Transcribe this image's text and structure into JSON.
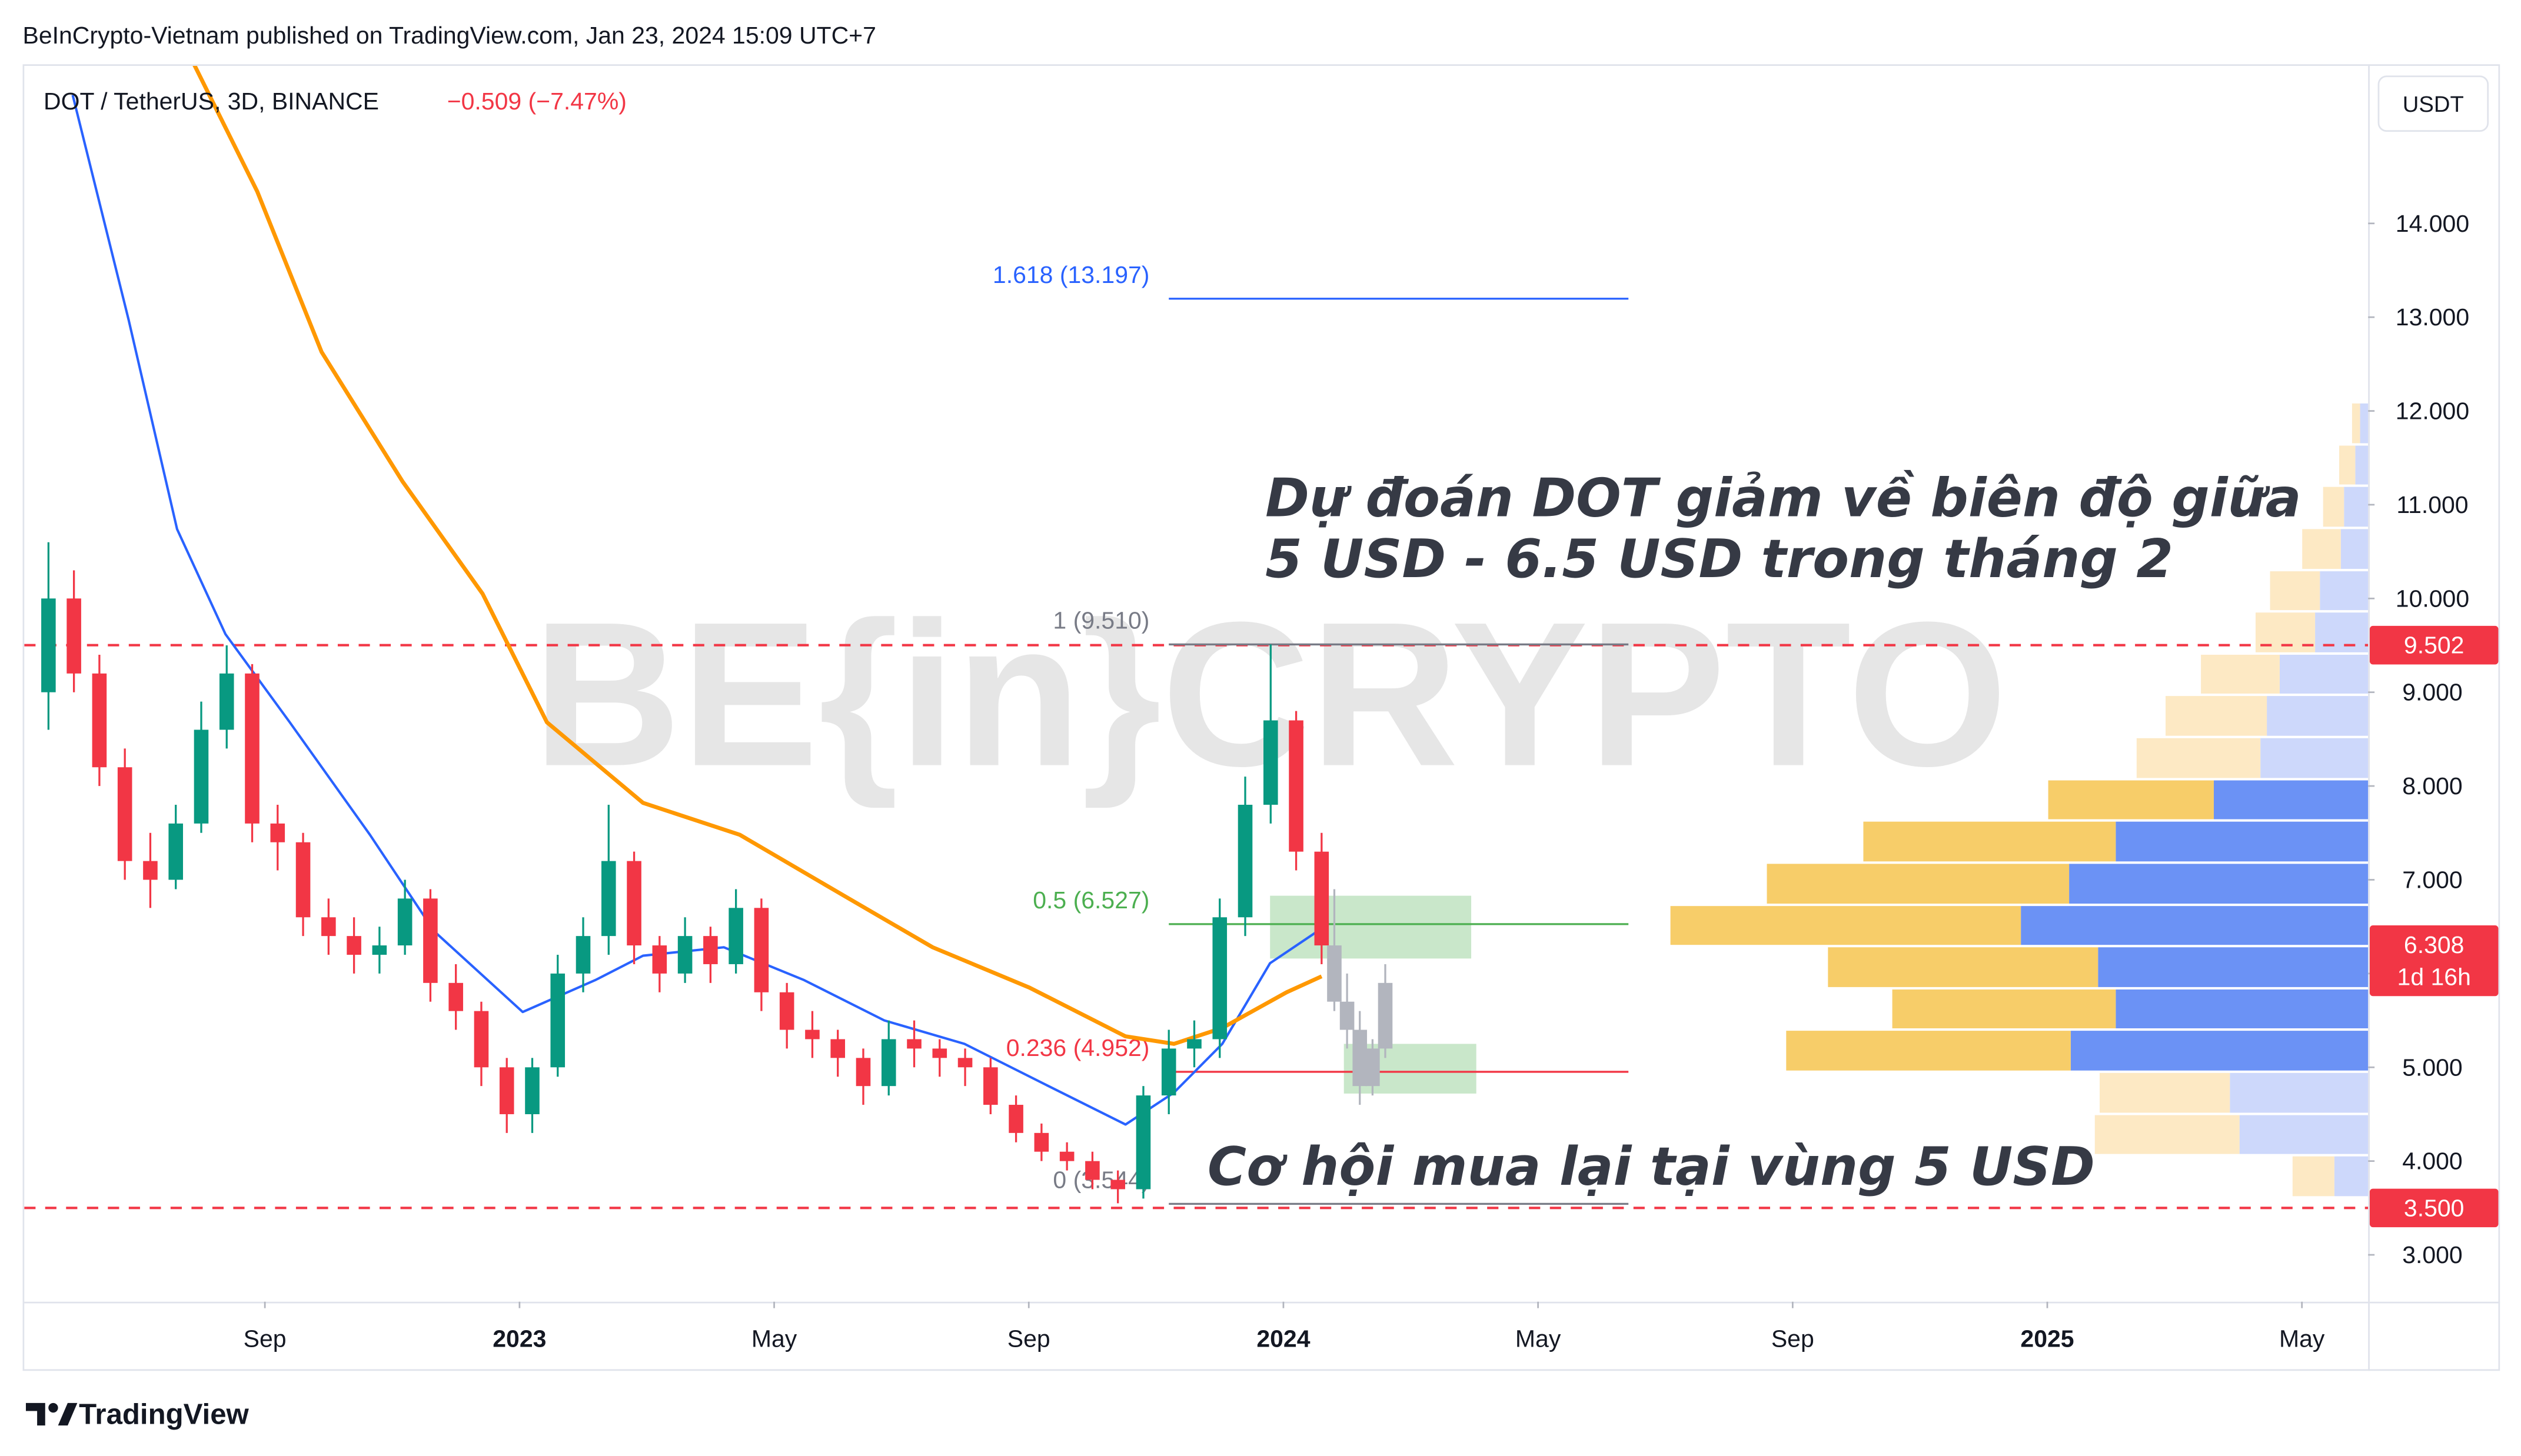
{
  "header": "BeInCrypto-Vietnam published on TradingView.com, Jan 23, 2024 15:09 UTC+7",
  "footer": "TradingView",
  "chart_data": {
    "type": "candlestick",
    "symbol": "DOT / TetherUS, 3D, BINANCE",
    "change": "−0.509 (−7.47%)",
    "currency": "USDT",
    "watermark": "BE{in}CRYPTO",
    "annotations": [
      "Dự đoán DOT giảm về biên độ giữa",
      "5 USD - 6.5 USD trong tháng 2",
      "Cơ hội mua lại tại vùng 5 USD"
    ],
    "xlim": [
      4.22,
      41.04
    ],
    "xticks": [
      {
        "value": 8,
        "label": "Sep"
      },
      {
        "value": 12,
        "label": "2023"
      },
      {
        "value": 16,
        "label": "May"
      },
      {
        "value": 20,
        "label": "Sep"
      },
      {
        "value": 24,
        "label": "2024"
      },
      {
        "value": 28,
        "label": "May"
      },
      {
        "value": 32,
        "label": "Sep"
      },
      {
        "value": 36,
        "label": "2025"
      },
      {
        "value": 40,
        "label": "May"
      }
    ],
    "ylim": [
      2.5,
      15.68
    ],
    "yticks": [
      {
        "value": 3,
        "label": "3.000"
      },
      {
        "value": 4,
        "label": "4.000"
      },
      {
        "value": 5,
        "label": "5.000"
      },
      {
        "value": 6,
        "label": "6.000"
      },
      {
        "value": 7,
        "label": "7.000"
      },
      {
        "value": 8,
        "label": "8.000"
      },
      {
        "value": 9,
        "label": "9.000"
      },
      {
        "value": 10,
        "label": "10.000"
      },
      {
        "value": 11,
        "label": "11.000"
      },
      {
        "value": 12,
        "label": "12.000"
      },
      {
        "value": 13,
        "label": "13.000"
      },
      {
        "value": 14,
        "label": "14.000"
      }
    ],
    "grid": false,
    "up_color": "#089981",
    "down_color": "#f23645",
    "x": [
      4.6,
      5.0,
      5.4,
      5.8,
      6.2,
      6.6,
      7.0,
      7.4,
      7.8,
      8.2,
      8.6,
      9.0,
      9.4,
      9.8,
      10.2,
      10.6,
      11.0,
      11.4,
      11.8,
      12.2,
      12.6,
      13.0,
      13.4,
      13.8,
      14.2,
      14.6,
      15.0,
      15.4,
      15.8,
      16.2,
      16.6,
      17.0,
      17.4,
      17.8,
      18.2,
      18.6,
      19.0,
      19.4,
      19.8,
      20.2,
      20.6,
      21.0,
      21.4,
      21.8,
      22.2,
      22.6,
      23.0,
      23.4,
      23.8,
      24.2,
      24.6
    ],
    "open": [
      9.0,
      10.0,
      9.2,
      8.2,
      7.2,
      7.0,
      7.6,
      8.6,
      9.2,
      7.6,
      7.4,
      6.6,
      6.4,
      6.2,
      6.3,
      6.8,
      5.9,
      5.6,
      5.0,
      4.5,
      5.0,
      6.0,
      6.4,
      7.2,
      6.3,
      6.0,
      6.4,
      6.1,
      6.7,
      5.8,
      5.4,
      5.3,
      5.1,
      4.8,
      5.3,
      5.2,
      5.1,
      5.0,
      4.6,
      4.3,
      4.1,
      4.0,
      3.8,
      3.7,
      4.7,
      5.2,
      5.3,
      6.6,
      7.8,
      8.7,
      7.3
    ],
    "high": [
      10.6,
      10.3,
      9.4,
      8.4,
      7.5,
      7.8,
      8.9,
      9.5,
      9.3,
      7.8,
      7.5,
      6.8,
      6.6,
      6.5,
      7.0,
      6.9,
      6.1,
      5.7,
      5.1,
      5.1,
      6.2,
      6.6,
      7.8,
      7.3,
      6.4,
      6.6,
      6.5,
      6.9,
      6.8,
      5.9,
      5.6,
      5.4,
      5.2,
      5.5,
      5.5,
      5.3,
      5.2,
      5.1,
      4.7,
      4.4,
      4.2,
      4.1,
      3.9,
      4.8,
      5.4,
      5.5,
      6.8,
      8.1,
      9.51,
      8.8,
      7.5
    ],
    "low": [
      8.6,
      9.0,
      8.0,
      7.0,
      6.7,
      6.9,
      7.5,
      8.4,
      7.4,
      7.1,
      6.4,
      6.2,
      6.0,
      6.0,
      6.2,
      5.7,
      5.4,
      4.8,
      4.3,
      4.3,
      4.9,
      5.8,
      6.2,
      6.1,
      5.8,
      5.9,
      5.9,
      6.0,
      5.6,
      5.2,
      5.1,
      4.9,
      4.6,
      4.7,
      5.0,
      4.9,
      4.8,
      4.5,
      4.2,
      4.0,
      3.9,
      3.7,
      3.55,
      3.6,
      4.5,
      5.0,
      5.1,
      6.4,
      7.6,
      7.1,
      6.1
    ],
    "close": [
      10.0,
      9.2,
      8.2,
      7.2,
      7.0,
      7.6,
      8.6,
      9.2,
      7.6,
      7.4,
      6.6,
      6.4,
      6.2,
      6.3,
      6.8,
      5.9,
      5.6,
      5.0,
      4.5,
      5.0,
      6.0,
      6.4,
      7.2,
      6.3,
      6.0,
      6.4,
      6.1,
      6.7,
      5.8,
      5.4,
      5.3,
      5.1,
      4.8,
      5.3,
      5.2,
      5.1,
      5.0,
      4.6,
      4.3,
      4.1,
      4.0,
      3.8,
      3.7,
      4.7,
      5.2,
      5.3,
      6.6,
      7.8,
      8.7,
      7.3,
      6.3
    ],
    "projection": {
      "color": "#b2b5be",
      "x": [
        24.8,
        25.0,
        25.2,
        25.4,
        25.6
      ],
      "open": [
        6.3,
        5.7,
        5.4,
        4.8,
        5.2
      ],
      "high": [
        6.9,
        6.0,
        5.6,
        5.3,
        6.1
      ],
      "low": [
        5.6,
        5.2,
        4.6,
        4.7,
        5.1
      ],
      "close": [
        5.7,
        5.4,
        4.8,
        5.2,
        5.9
      ]
    },
    "moving_averages": [
      {
        "color": "#2962ff",
        "x": [
          4.98,
          5.86,
          6.62,
          7.38,
          8.39,
          9.65,
          10.66,
          12.05,
          13.19,
          13.94,
          15.21,
          16.47,
          17.73,
          18.99,
          20.25,
          21.52,
          22.28,
          23.04,
          23.79,
          24.6
        ],
        "values": [
          15.37,
          12.97,
          10.74,
          9.62,
          8.68,
          7.48,
          6.45,
          5.59,
          5.93,
          6.19,
          6.28,
          5.93,
          5.5,
          5.25,
          4.82,
          4.39,
          4.73,
          5.25,
          6.11,
          6.48
        ]
      },
      {
        "color": "#ff9800",
        "x": [
          6.87,
          7.88,
          8.89,
          10.16,
          11.42,
          12.43,
          13.94,
          15.46,
          16.97,
          18.49,
          20.01,
          21.52,
          22.28,
          23.04,
          24.05,
          24.6
        ],
        "values": [
          15.72,
          14.34,
          12.63,
          11.25,
          10.05,
          8.68,
          7.82,
          7.48,
          6.88,
          6.28,
          5.85,
          5.33,
          5.25,
          5.42,
          5.8,
          5.97
        ]
      }
    ],
    "fib_levels": {
      "x_range": [
        22.2,
        29.42
      ],
      "levels": [
        {
          "value": 13.197,
          "label": "1.618 (13.197)",
          "color": "#2962ff"
        },
        {
          "value": 9.51,
          "label": "1 (9.510)",
          "color": "#787b86"
        },
        {
          "value": 6.527,
          "label": "0.5 (6.527)",
          "color": "#4caf50"
        },
        {
          "value": 4.952,
          "label": "0.236 (4.952)",
          "color": "#f23645"
        },
        {
          "value": 3.544,
          "label": "0 (3.544)",
          "color": "#787b86"
        }
      ]
    },
    "zones": {
      "color": "#4caf50",
      "boxes": [
        {
          "x": [
            23.79,
            26.95
          ],
          "y": [
            6.16,
            6.83
          ]
        },
        {
          "x": [
            24.95,
            27.03
          ],
          "y": [
            4.72,
            5.25
          ]
        }
      ]
    },
    "hlines": {
      "color": "#f23645",
      "values": [
        9.502,
        {
          "value": 3.5,
          "label": "3.500"
        }
      ]
    },
    "last_price": {
      "value": 6.308,
      "countdown": "1d 16h"
    },
    "volume_profile": {
      "bins": [
        3.6,
        4.05,
        4.49,
        4.94,
        5.39,
        5.83,
        6.28,
        6.72,
        7.17,
        7.62,
        8.06,
        8.51,
        8.96,
        9.4,
        9.85,
        10.29,
        10.74,
        11.19,
        11.63,
        12.08
      ],
      "up": [
        26,
        90,
        81,
        177,
        139,
        168,
        218,
        188,
        157,
        103,
        77,
        63,
        49,
        37,
        31,
        24,
        13,
        10,
        5
      ],
      "down": [
        21,
        80,
        86,
        185,
        157,
        168,
        216,
        186,
        157,
        96,
        67,
        63,
        55,
        33,
        30,
        17,
        15,
        8,
        5
      ],
      "value_area": [
        4.94,
        8.06
      ],
      "up_color": "#f7cd69",
      "down_color": "#6b92f5",
      "up_faded": "#fde9c4",
      "down_faded": "#cdd8fb"
    }
  }
}
